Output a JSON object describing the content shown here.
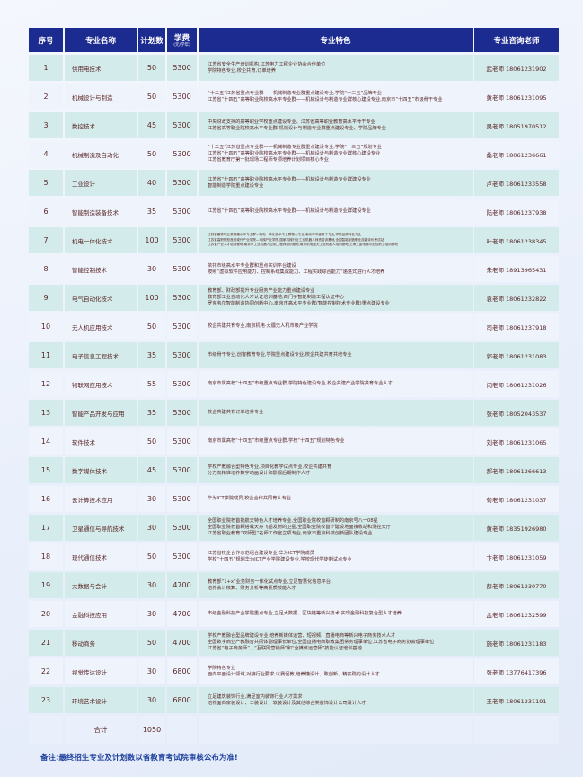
{
  "header": {
    "index": "序号",
    "name": "专业名称",
    "plan": "计划数",
    "fee": "学费",
    "fee_unit": "(元/学年)",
    "features": "专业特色",
    "teacher": "专业咨询老师"
  },
  "rows": [
    {
      "no": "1",
      "name": "供用电技术",
      "plan": "50",
      "fee": "5300",
      "features": [
        "江苏省安全生产培训机构,江苏电力工程企业协会合作单位",
        "学院特色专业,校企共育,订单培养"
      ],
      "teacher": "武老师 18061231902"
    },
    {
      "no": "2",
      "name": "机械设计与制造",
      "plan": "50",
      "fee": "5300",
      "features": [
        "“十二五”江苏省重点专业群——机械制造专业群重点建设专业,学院“十三五”品牌专业",
        "江苏省“十四五”高等职业院校高水平专业群——机械设计与制造专业群核心建设专业,南京市“十四五”市级骨干专业"
      ],
      "teacher": "黄老师 18061231095"
    },
    {
      "no": "3",
      "name": "数控技术",
      "plan": "45",
      "fee": "5300",
      "features": [
        "中央财政支持的高等职业学校重点建设专业、江苏省高等职业教育高水平骨干专业",
        "江苏省高等职业院校高水平专业群-机械设计与制造专业群重点建设专业、学院品牌专业"
      ],
      "teacher": "吴老师 18051970512"
    },
    {
      "no": "4",
      "name": "机械制造及自动化",
      "plan": "50",
      "fee": "5300",
      "features": [
        "“十二五”江苏省重点专业群——机械制造专业群重点建设专业,学院“十三五”规划专业",
        "江苏省“十四五”高等职业院校高水平专业群——机械设计与制造专业群核心建设专业",
        "江苏省教育厅第一批现场工程师专项培养计划项目核心专业"
      ],
      "teacher": "桑老师 18061236661"
    },
    {
      "no": "5",
      "name": "工业设计",
      "plan": "40",
      "fee": "5300",
      "features": [
        "江苏省“十四五”高等职业院校高水平专业群——机械设计与制造专业群建设专业",
        "智能制造学院重点建设专业"
      ],
      "teacher": "卢老师 18061233558"
    },
    {
      "no": "6",
      "name": "智能制造装备技术",
      "plan": "35",
      "fee": "5300",
      "features": [
        "江苏省“十四五”高等职业院校高水平专业群——机械设计与制造专业群建设专业"
      ],
      "teacher": "陆老师 18061237938"
    },
    {
      "no": "7",
      "name": "机电一体化技术",
      "plan": "100",
      "fee": "5300",
      "features": [
        "江苏省高等职业教育高水平专业群—机电一体化技术专业群核心专业,南京市市级骨干专业,学院品牌特色专业",
        "江苏省高职院校首批现代产业学院—电梯产业学院,国家机械行业工业机器人师资培训基地,全国智能制造职业技能评价考试站",
        "江苏省产业人才培训基地,南京市工业机器人应用工程师培训基地,南京机电蓝天工业机器人培训基地,上海三菱电梯示范性职工培训基地"
      ],
      "teacher": "叶老师 18061238345"
    },
    {
      "no": "8",
      "name": "智能控制技术",
      "plan": "30",
      "fee": "5300",
      "features": [
        "依托市级高水平专业群和重点实训平台建设",
        "按照“虚拟软件应用能力、控制系统集成能力、工程实践综合能力”递进式进行人才培养"
      ],
      "teacher": "朱老师 18913965431"
    },
    {
      "no": "9",
      "name": "电气自动化技术",
      "plan": "100",
      "fee": "5300",
      "features": [
        "教育部、财政部提升专业服务产业能力重点建设专业",
        "教育部工业自动化人才认证培训基地,西门子智能制造工程认证中心",
        "罗克韦尔智能制造协同创新中心,南京市高水平专业群(智能控制技术专业群)重点建设专业"
      ],
      "teacher": "袁老师 18061232822"
    },
    {
      "no": "10",
      "name": "无人机应用技术",
      "plan": "50",
      "fee": "5300",
      "features": [
        "校企共建共育专业,南京机电·大疆无人机市级产业学院"
      ],
      "teacher": "司老师 18061237918"
    },
    {
      "no": "11",
      "name": "电子信息工程技术",
      "plan": "35",
      "fee": "5300",
      "features": [
        "市级骨干专业,创客教育专业,学院重点建设专业,校企共建共育共培专业"
      ],
      "teacher": "郭老师 18061231083"
    },
    {
      "no": "12",
      "name": "物联网应用技术",
      "plan": "55",
      "fee": "5300",
      "features": [
        "南京市属高校“十四五”市级重点专业群,学院特色建设专业,校企共建产业学院共育专业人才"
      ],
      "teacher": "闫老师 18061231026"
    },
    {
      "no": "13",
      "name": "智能产品开发与应用",
      "plan": "35",
      "fee": "5300",
      "features": [
        "校企共建共育订单培养专业"
      ],
      "teacher": "张老师 18052043537"
    },
    {
      "no": "14",
      "name": "软件技术",
      "plan": "50",
      "fee": "5300",
      "features": [
        "南京市属高校“十四五”市级重点专业群,学校“十四五”规划特色专业"
      ],
      "teacher": "刘老师 18061231065"
    },
    {
      "no": "15",
      "name": "数字媒体技术",
      "plan": "45",
      "fee": "5300",
      "features": [
        "学校产教融合型特色专业,项目化教学试点专业,校企共建共育",
        "分方向精准培养数字动画设计和影视后期制作人才"
      ],
      "teacher": "郝老师 18061266613"
    },
    {
      "no": "16",
      "name": "云计算技术应用",
      "plan": "30",
      "fee": "5300",
      "features": [
        "华为ICT学院成员,校企合作共同育人专业"
      ],
      "teacher": "荀老师 18061231037"
    },
    {
      "no": "17",
      "name": "卫星通信与导航技术",
      "plan": "30",
      "fee": "5300",
      "features": [
        "全国职业院校首批航天特色人才培养专业,全国职业院校首颗研制的南京号八一08星",
        "全国职业院校首颗搭载天舟飞船发射的卫星,全国职业院校首个建设地面接收站和测控大厅",
        "江苏省职业教育“双师型”名师工作室立项专业,南京市重点科技创新团队建设专业"
      ],
      "teacher": "黄老师 18351926980"
    },
    {
      "no": "18",
      "name": "现代通信技术",
      "plan": "50",
      "fee": "5300",
      "features": [
        "江苏省校企合作示范组合建设专业,华为ICT学院成员",
        "学校“十四五”规划华为ICT产业学院建设专业,学校现代学徒制试点专业"
      ],
      "teacher": "卞老师 18061231059"
    },
    {
      "no": "19",
      "name": "大数据与会计",
      "plan": "30",
      "fee": "4700",
      "features": [
        "教育部“1+x”业务财务一体化试点专业,立足智慧化信息平台,",
        "培养会计核算、财务分析等高素质技能人才"
      ],
      "teacher": "薛老师 18061230770"
    },
    {
      "no": "20",
      "name": "金融科技应用",
      "plan": "30",
      "fee": "4700",
      "features": [
        "市级金融科技产业学院重点专业,立足大数据、区块链等新兴技术,实现金融科技复合型人才培养"
      ],
      "teacher": "孟老师 18061232599"
    },
    {
      "no": "21",
      "name": "移动商务",
      "plan": "50",
      "fee": "4700",
      "features": [
        "学校产教融合型品牌建设专业,培养新媒体运营、短视频、直播电商等新兴电子商务技术人才",
        "全国数字商业产教融合共同体副理事长单位,全国直播电商职教集团常务理事单位,江苏省电子商务协会理事单位",
        "江苏省“电子商务师”、“互联网营销师”和“全媒体运营师”技能认证培训基地"
      ],
      "teacher": "施老师 18061231183"
    },
    {
      "no": "22",
      "name": "视觉传达设计",
      "plan": "30",
      "fee": "6800",
      "features": [
        "学院特色专业",
        "面向平面设计领域,对接行业要求,以赛促教,培养懂设计、敢创新、精实践的设计人才"
      ],
      "teacher": "张老师 13776417396"
    },
    {
      "no": "23",
      "name": "环境艺术设计",
      "plan": "30",
      "fee": "6800",
      "features": [
        "立足建筑装饰行业,满足室内装饰行业人才需求",
        "培养面向家装设计、工装设计、软装设计及其他综合类装饰设计公司设计人才"
      ],
      "teacher": "王老师 18061231191"
    }
  ],
  "total": {
    "label": "合计",
    "plan": "1050"
  },
  "note": "备注:最终招生专业及计划数以省教育考试院审核公布为准!",
  "colors": {
    "header_bg": "#1c2b90",
    "row_odd": "#d3ebea",
    "row_even": "#eef3fc",
    "text": "#5a2626",
    "note": "#1d3f9e"
  }
}
